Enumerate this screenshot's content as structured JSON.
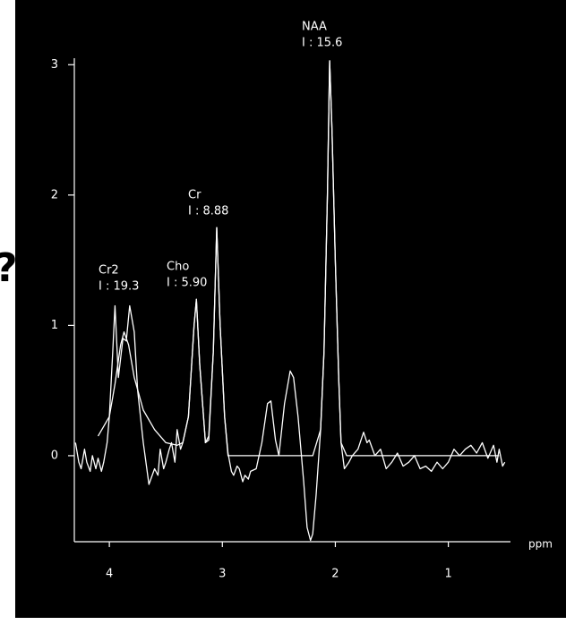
{
  "left_fragment": "?",
  "chart_data": {
    "type": "line",
    "x_label": "ppm",
    "xlim": [
      4.31,
      0.45
    ],
    "xticks": [
      4,
      3,
      2,
      1
    ],
    "ylim": [
      -0.66,
      3.05
    ],
    "yticks": [
      0,
      1,
      2,
      3
    ],
    "background": "#000000",
    "annotations": [
      {
        "label": "Cr2",
        "text": "I : 19.3"
      },
      {
        "label": "Cho",
        "text": "I : 5.90"
      },
      {
        "label": "Cr",
        "text": "I : 8.88"
      },
      {
        "label": "NAA",
        "text": "I : 15.6"
      }
    ],
    "series": [
      {
        "color": "#ffffff",
        "x": [
          4.3,
          4.27,
          4.25,
          4.22,
          4.2,
          4.17,
          4.15,
          4.12,
          4.1,
          4.07,
          4.05,
          4.02,
          4.0,
          3.97,
          3.95,
          3.92,
          3.88,
          3.85,
          3.82,
          3.78,
          3.75,
          3.7,
          3.65,
          3.6,
          3.57,
          3.55,
          3.52,
          3.5,
          3.47,
          3.45,
          3.42,
          3.4,
          3.37,
          3.35,
          3.3,
          3.25,
          3.23,
          3.2,
          3.15,
          3.12,
          3.08,
          3.05,
          3.02,
          2.98,
          2.95,
          2.92,
          2.9,
          2.87,
          2.85,
          2.82,
          2.8,
          2.77,
          2.75,
          2.7,
          2.65,
          2.6,
          2.57,
          2.53,
          2.5,
          2.45,
          2.4,
          2.37,
          2.33,
          2.28,
          2.25,
          2.22,
          2.2,
          2.17,
          2.13,
          2.1,
          2.07,
          2.05,
          2.03,
          2.0,
          1.97,
          1.95,
          1.92,
          1.88,
          1.85,
          1.8,
          1.75,
          1.72,
          1.7,
          1.65,
          1.6,
          1.55,
          1.5,
          1.45,
          1.4,
          1.35,
          1.3,
          1.25,
          1.2,
          1.15,
          1.1,
          1.05,
          1.0,
          0.95,
          0.9,
          0.85,
          0.8,
          0.75,
          0.7,
          0.65,
          0.6,
          0.57,
          0.55,
          0.52,
          0.5
        ],
        "values": [
          0.1,
          -0.05,
          -0.1,
          0.05,
          -0.05,
          -0.12,
          0.0,
          -0.1,
          -0.02,
          -0.12,
          -0.05,
          0.1,
          0.3,
          0.8,
          1.15,
          0.6,
          0.9,
          0.88,
          1.15,
          0.95,
          0.5,
          0.1,
          -0.22,
          -0.1,
          -0.15,
          0.05,
          -0.1,
          -0.05,
          0.05,
          0.1,
          -0.05,
          0.2,
          0.05,
          0.1,
          0.3,
          1.0,
          1.2,
          0.7,
          0.1,
          0.15,
          0.8,
          1.75,
          1.0,
          0.3,
          0.02,
          -0.12,
          -0.15,
          -0.08,
          -0.1,
          -0.2,
          -0.15,
          -0.18,
          -0.12,
          -0.1,
          0.1,
          0.4,
          0.42,
          0.12,
          0.0,
          0.4,
          0.65,
          0.6,
          0.3,
          -0.2,
          -0.55,
          -0.65,
          -0.6,
          -0.3,
          0.2,
          0.8,
          2.0,
          3.03,
          2.5,
          1.5,
          0.6,
          0.1,
          -0.1,
          -0.05,
          0.0,
          0.05,
          0.18,
          0.1,
          0.12,
          0.0,
          0.05,
          -0.1,
          -0.05,
          0.02,
          -0.08,
          -0.05,
          0.0,
          -0.1,
          -0.08,
          -0.12,
          -0.05,
          -0.1,
          -0.05,
          0.05,
          0.0,
          0.05,
          0.08,
          0.02,
          0.1,
          -0.02,
          0.08,
          -0.05,
          0.05,
          -0.08,
          -0.05
        ]
      },
      {
        "color": "#ffffff",
        "x": [
          4.1,
          4.0,
          3.95,
          3.9,
          3.87,
          3.83,
          3.78,
          3.7,
          3.6,
          3.5,
          3.4,
          3.35,
          3.3,
          3.25,
          3.23,
          3.2,
          3.15,
          3.12,
          3.08,
          3.05,
          3.02,
          2.98,
          2.95,
          2.6,
          2.2,
          2.13,
          2.1,
          2.07,
          2.05,
          2.03,
          2.0,
          1.97,
          1.95,
          1.9,
          1.5,
          1.0,
          0.55
        ],
        "values": [
          0.15,
          0.3,
          0.55,
          0.85,
          0.95,
          0.85,
          0.6,
          0.35,
          0.2,
          0.1,
          0.08,
          0.1,
          0.3,
          1.0,
          1.2,
          0.7,
          0.1,
          0.12,
          0.8,
          1.75,
          1.0,
          0.3,
          0.0,
          0.0,
          0.0,
          0.2,
          0.8,
          2.0,
          3.03,
          2.5,
          1.5,
          0.6,
          0.1,
          0.0,
          0.0,
          0.0,
          0.0
        ]
      }
    ]
  }
}
